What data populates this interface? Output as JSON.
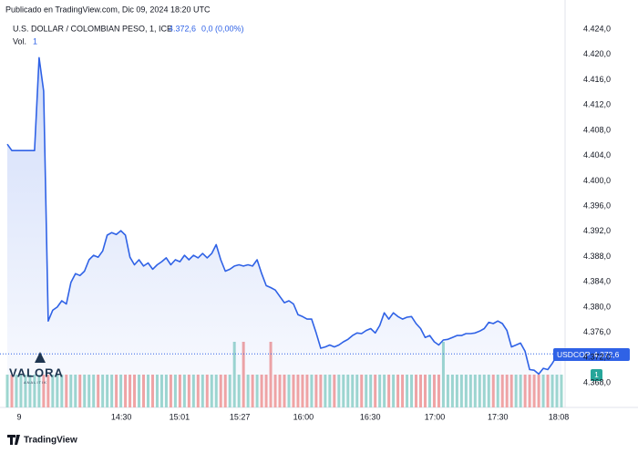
{
  "chart_data": {
    "type": "area",
    "published": "Publicado en TradingView.com, Dic 09, 2024 18:20 UTC",
    "symbol": "U.S. DOLLAR / COLOMBIAN PESO, 1, ICE",
    "last_label": "4.372,6",
    "change_label": "0,0 (0,00%)",
    "volume_title": "Vol.",
    "volume_label": "1",
    "ticker": "USDCOP",
    "watermark": "VALORA",
    "watermark_sub": "ANALITIK",
    "brand": "TradingView",
    "color": "#2f62e6",
    "up_color": "#9fd8cf",
    "down_color": "#f4a5a3",
    "grid": false,
    "values": [
      4405.8,
      4404.8,
      4404.8,
      4404.8,
      4404.8,
      4404.8,
      4404.8,
      4419.5,
      4414.2,
      4377.8,
      4379.5,
      4380.0,
      4381.0,
      4380.5,
      4383.9,
      4385.3,
      4385.0,
      4385.7,
      4387.5,
      4388.2,
      4387.9,
      4388.9,
      4391.4,
      4391.8,
      4391.5,
      4392.1,
      4391.4,
      4387.9,
      4386.7,
      4387.5,
      4386.5,
      4387.0,
      4386.0,
      4386.7,
      4387.2,
      4387.8,
      4386.7,
      4387.5,
      4387.2,
      4388.2,
      4387.5,
      4388.2,
      4387.8,
      4388.5,
      4387.8,
      4388.5,
      4389.9,
      4387.5,
      4385.7,
      4386.0,
      4386.5,
      4386.7,
      4386.5,
      4386.7,
      4386.5,
      4387.5,
      4385.3,
      4383.4,
      4383.1,
      4382.7,
      4381.7,
      4380.7,
      4381.0,
      4380.5,
      4378.8,
      4378.5,
      4378.1,
      4378.1,
      4375.9,
      4373.5,
      4373.7,
      4374.0,
      4373.7,
      4374.0,
      4374.5,
      4374.9,
      4375.5,
      4375.9,
      4375.8,
      4376.3,
      4376.6,
      4375.9,
      4377.1,
      4379.1,
      4378.1,
      4379.1,
      4378.5,
      4378.1,
      4378.4,
      4378.5,
      4377.4,
      4376.6,
      4375.2,
      4375.5,
      4374.5,
      4374.0,
      4374.8,
      4374.9,
      4375.2,
      4375.5,
      4375.5,
      4375.8,
      4375.8,
      4375.9,
      4376.2,
      4376.6,
      4377.6,
      4377.4,
      4377.8,
      4377.4,
      4376.3,
      4373.7,
      4374.0,
      4374.3,
      4373.0,
      4370.1,
      4370.0,
      4369.4,
      4370.3,
      4370.1,
      4371.1,
      4372.3,
      4372.6
    ],
    "volume": [
      1,
      1,
      1,
      1,
      1,
      1,
      1,
      1,
      1,
      1,
      1,
      1,
      1,
      1,
      1,
      1,
      1,
      1,
      1,
      1,
      1,
      1,
      1,
      1,
      1,
      1,
      1,
      1,
      1,
      1,
      1,
      1,
      1,
      1,
      1,
      1,
      1,
      1,
      1,
      1,
      1,
      1,
      1,
      1,
      1,
      1,
      1,
      1,
      1,
      1,
      2,
      1,
      2,
      1,
      1,
      1,
      1,
      1,
      2,
      1,
      1,
      1,
      1,
      1,
      1,
      1,
      1,
      1,
      1,
      1,
      1,
      1,
      1,
      1,
      1,
      1,
      1,
      1,
      1,
      1,
      1,
      1,
      1,
      1,
      1,
      1,
      1,
      1,
      1,
      1,
      1,
      1,
      1,
      1,
      1,
      1,
      2,
      1,
      1,
      1,
      1,
      1,
      1,
      1,
      1,
      1,
      1,
      1,
      1,
      1,
      1,
      1,
      1,
      1,
      1,
      1,
      1,
      1,
      1,
      1,
      1,
      1,
      1
    ],
    "volume_ylim": [
      0,
      2
    ],
    "xlim": [
      0,
      122
    ],
    "xticks": [
      {
        "value": 2.6,
        "label": "9"
      },
      {
        "value": 25.1,
        "label": "14:30"
      },
      {
        "value": 37.9,
        "label": "15:01"
      },
      {
        "value": 51.2,
        "label": "15:27"
      },
      {
        "value": 65.2,
        "label": "16:00"
      },
      {
        "value": 79.9,
        "label": "16:30"
      },
      {
        "value": 94.1,
        "label": "17:00"
      },
      {
        "value": 108.0,
        "label": "17:30"
      },
      {
        "value": 121.4,
        "label": "18:08"
      }
    ],
    "ylim": [
      4364.4,
      4427.2
    ],
    "yticks": [
      {
        "value": 4368,
        "label": "4.368,0"
      },
      {
        "value": 4372,
        "label": "4.372,0"
      },
      {
        "value": 4376,
        "label": "4.376,0"
      },
      {
        "value": 4380,
        "label": "4.380,0"
      },
      {
        "value": 4384,
        "label": "4.384,0"
      },
      {
        "value": 4388,
        "label": "4.388,0"
      },
      {
        "value": 4392,
        "label": "4.392,0"
      },
      {
        "value": 4396,
        "label": "4.396,0"
      },
      {
        "value": 4400,
        "label": "4.400,0"
      },
      {
        "value": 4404,
        "label": "4.404,0"
      },
      {
        "value": 4408,
        "label": "4.408,0"
      },
      {
        "value": 4412,
        "label": "4.412,0"
      },
      {
        "value": 4416,
        "label": "4.416,0"
      },
      {
        "value": 4420,
        "label": "4.420,0"
      },
      {
        "value": 4424,
        "label": "4.424,0"
      }
    ]
  }
}
